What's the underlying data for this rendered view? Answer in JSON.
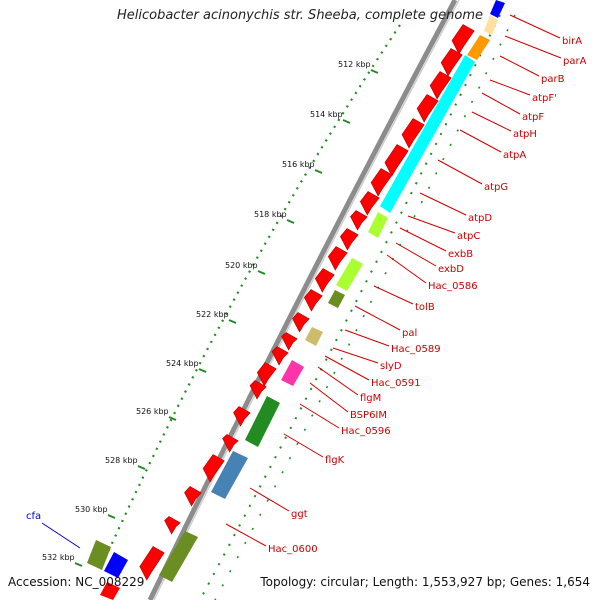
{
  "title": "Helicobacter acinonychis str. Sheeba, complete genome",
  "footer": {
    "accession": "Accession: NC_008229",
    "topology": "Topology: circular; Length: 1,553,927 bp; Genes: 1,654"
  },
  "colors": {
    "backbone": "#8c8c8c",
    "forward_gene": "#ff0000",
    "ruler_tick": "#228b22",
    "label_red": "#cc0000",
    "label_blue": "#0000cc"
  },
  "kbp_ticks": [
    "512 kbp",
    "514 kbp",
    "516 kbp",
    "518 kbp",
    "520 kbp",
    "522 kbp",
    "524 kbp",
    "526 kbp",
    "528 kbp",
    "530 kbp",
    "532 kbp"
  ],
  "gene_labels": [
    {
      "text": "birA",
      "color": "#cc0000"
    },
    {
      "text": "parA",
      "color": "#cc0000"
    },
    {
      "text": "parB",
      "color": "#cc0000"
    },
    {
      "text": "atpF'",
      "color": "#cc0000"
    },
    {
      "text": "atpF",
      "color": "#cc0000"
    },
    {
      "text": "atpH",
      "color": "#cc0000"
    },
    {
      "text": "atpA",
      "color": "#cc0000"
    },
    {
      "text": "atpG",
      "color": "#cc0000"
    },
    {
      "text": "atpD",
      "color": "#cc0000"
    },
    {
      "text": "atpC",
      "color": "#cc0000"
    },
    {
      "text": "exbB",
      "color": "#cc0000"
    },
    {
      "text": "exbD",
      "color": "#cc0000"
    },
    {
      "text": "Hac_0586",
      "color": "#cc0000"
    },
    {
      "text": "tolB",
      "color": "#cc0000"
    },
    {
      "text": "pal",
      "color": "#cc0000"
    },
    {
      "text": "Hac_0589",
      "color": "#cc0000"
    },
    {
      "text": "slyD",
      "color": "#cc0000"
    },
    {
      "text": "Hac_0591",
      "color": "#cc0000"
    },
    {
      "text": "flgM",
      "color": "#cc0000"
    },
    {
      "text": "BSP6IM",
      "color": "#cc0000"
    },
    {
      "text": "Hac_0596",
      "color": "#cc0000"
    },
    {
      "text": "flgK",
      "color": "#cc0000"
    },
    {
      "text": "ggt",
      "color": "#cc0000"
    },
    {
      "text": "Hac_0600",
      "color": "#cc0000"
    },
    {
      "text": "cfa",
      "color": "#0000cc"
    }
  ]
}
